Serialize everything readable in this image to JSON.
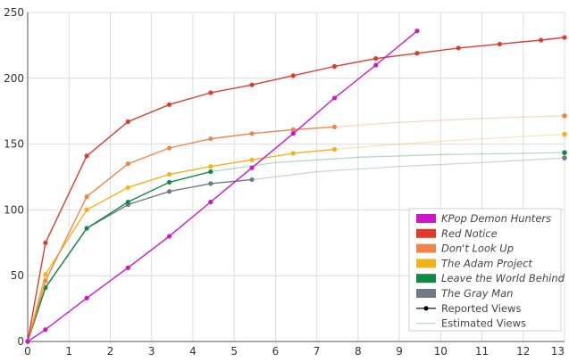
{
  "chart_data": {
    "type": "line",
    "title": "",
    "xlabel": "",
    "ylabel": "",
    "xlim": [
      0,
      13
    ],
    "ylim": [
      0,
      250
    ],
    "x_ticks": [
      0,
      1,
      2,
      3,
      4,
      5,
      6,
      7,
      8,
      9,
      10,
      11,
      12,
      13
    ],
    "y_ticks": [
      0,
      50,
      100,
      150,
      200,
      250
    ],
    "grid": true,
    "legend_position": "bottom-right",
    "series": [
      {
        "name": "KPop Demon Hunters",
        "color": "#cc16cc",
        "reported": [
          [
            0,
            0
          ],
          [
            0.43,
            9
          ],
          [
            1.43,
            33
          ],
          [
            2.43,
            56
          ],
          [
            3.43,
            80
          ],
          [
            4.43,
            106
          ],
          [
            5.43,
            132
          ],
          [
            6.43,
            158
          ],
          [
            7.43,
            185
          ],
          [
            8.43,
            210
          ],
          [
            9.43,
            236
          ]
        ],
        "estimated": []
      },
      {
        "name": "Red Notice",
        "color": "#e03a2c",
        "reported": [
          [
            0,
            0
          ],
          [
            0.43,
            75
          ],
          [
            1.43,
            141
          ],
          [
            2.43,
            167
          ],
          [
            3.43,
            180
          ],
          [
            4.43,
            189
          ],
          [
            5.43,
            195
          ],
          [
            6.43,
            202
          ],
          [
            7.43,
            209
          ],
          [
            8.43,
            215
          ],
          [
            9.43,
            219
          ],
          [
            10.43,
            223
          ],
          [
            11.43,
            226
          ],
          [
            12.43,
            229
          ],
          [
            13,
            231
          ]
        ],
        "estimated": []
      },
      {
        "name": "Don't Look Up",
        "color": "#f0854a",
        "reported": [
          [
            0,
            0
          ],
          [
            0.43,
            46
          ],
          [
            1.43,
            110
          ],
          [
            2.43,
            135
          ],
          [
            3.43,
            147
          ],
          [
            4.43,
            154
          ],
          [
            5.43,
            158
          ],
          [
            6.43,
            161
          ],
          [
            7.43,
            163
          ]
        ],
        "estimated": [
          [
            7.43,
            163
          ],
          [
            9,
            166.5
          ],
          [
            11,
            169.5
          ],
          [
            13,
            171.5
          ]
        ],
        "estimated_end": [
          13,
          171.5
        ]
      },
      {
        "name": "The Adam Project",
        "color": "#f2b21c",
        "reported": [
          [
            0,
            0
          ],
          [
            0.43,
            51
          ],
          [
            1.43,
            100
          ],
          [
            2.43,
            117
          ],
          [
            3.43,
            127
          ],
          [
            4.43,
            133
          ],
          [
            5.43,
            138
          ],
          [
            6.43,
            143
          ],
          [
            7.43,
            146
          ]
        ],
        "estimated": [
          [
            7.43,
            146
          ],
          [
            9,
            150
          ],
          [
            11,
            154
          ],
          [
            13,
            157.5
          ]
        ],
        "estimated_end": [
          13,
          157.5
        ]
      },
      {
        "name": "Leave the World Behind",
        "color": "#128a44",
        "reported": [
          [
            0,
            0
          ],
          [
            0.43,
            41
          ],
          [
            1.43,
            86
          ],
          [
            2.43,
            106
          ],
          [
            3.43,
            121
          ],
          [
            4.43,
            129
          ]
        ],
        "estimated": [
          [
            4.43,
            129
          ],
          [
            6,
            136
          ],
          [
            8,
            140
          ],
          [
            10,
            142
          ],
          [
            13,
            143.5
          ]
        ],
        "estimated_end": [
          13,
          143.5
        ]
      },
      {
        "name": "The Gray Man",
        "color": "#6e7a86",
        "reported": [
          [
            0,
            0
          ],
          [
            0.43,
            41
          ],
          [
            1.43,
            86
          ],
          [
            2.43,
            104
          ],
          [
            3.43,
            114
          ],
          [
            4.43,
            120
          ],
          [
            5.43,
            123
          ]
        ],
        "estimated": [
          [
            5.43,
            123
          ],
          [
            7,
            129
          ],
          [
            9,
            133
          ],
          [
            11,
            136
          ],
          [
            13,
            139.5
          ]
        ],
        "estimated_end": [
          13,
          139.5
        ]
      }
    ],
    "legend_extra": [
      {
        "name": "Reported Views",
        "style": "line-with-dot",
        "color": "#000000"
      },
      {
        "name": "Estimated Views",
        "style": "thin-line",
        "color": "#b9d6cf"
      }
    ]
  }
}
